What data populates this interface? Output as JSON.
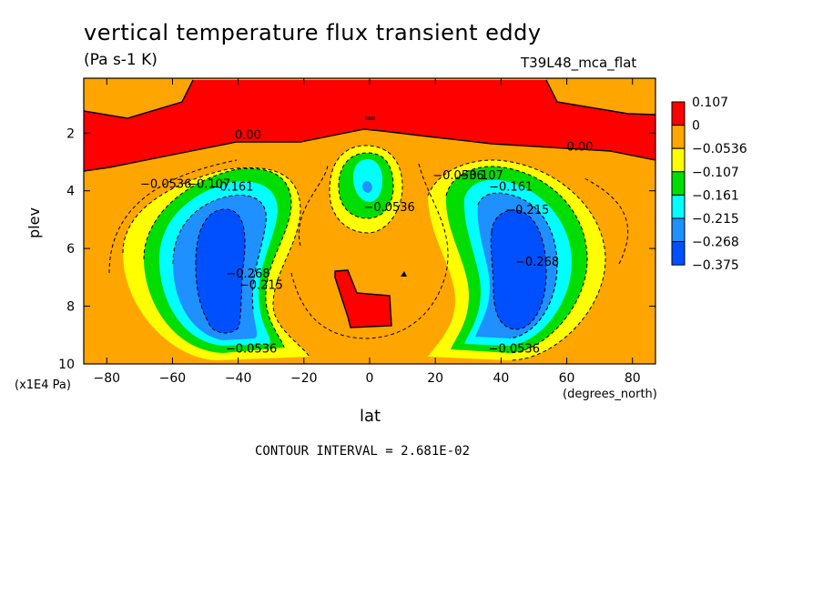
{
  "chart_data": {
    "type": "heatmap",
    "title": "vertical temperature flux transient eddy",
    "units": "(Pa s-1 K)",
    "run_label": "T39L48_mca_flat",
    "xlabel": "lat",
    "xunits": "(degrees_north)",
    "ylabel": "plev",
    "yunits": "(x1E4 Pa)",
    "contour_interval": "CONTOUR INTERVAL = 2.681E-02",
    "xlim": [
      -87,
      87
    ],
    "ylim": [
      10,
      0.1
    ],
    "x_ticks": [
      "-80",
      "-60",
      "-40",
      "-20",
      "0",
      "20",
      "40",
      "60",
      "80"
    ],
    "y_ticks": [
      "2",
      "4",
      "6",
      "8",
      "10"
    ],
    "legend": {
      "levels": [
        "0.107",
        "0",
        "−0.0536",
        "−0.107",
        "−0.161",
        "−0.215",
        "−0.268",
        "−0.375"
      ],
      "colors": [
        "#ff0000",
        "#ffa500",
        "#ffff00",
        "#00dd00",
        "#00ffff",
        "#1f90ff",
        "#0050ff"
      ]
    },
    "contour_labels": [
      {
        "text": "0.00",
        "lat": -37,
        "plev": 2.2
      },
      {
        "text": "0.00",
        "lat": 64,
        "plev": 2.6
      },
      {
        "text": "−0.0536",
        "lat": -62,
        "plev": 3.9
      },
      {
        "text": "−0.107",
        "lat": -49,
        "plev": 3.9
      },
      {
        "text": "−0.161",
        "lat": -42,
        "plev": 4.0
      },
      {
        "text": "−0.0536",
        "lat": 6,
        "plev": 4.7
      },
      {
        "text": "−0.0536",
        "lat": 27,
        "plev": 3.6
      },
      {
        "text": "−0.107",
        "lat": 34,
        "plev": 3.6
      },
      {
        "text": "−0.161",
        "lat": 43,
        "plev": 4.0
      },
      {
        "text": "−0.215",
        "lat": 48,
        "plev": 4.8
      },
      {
        "text": "−0.268",
        "lat": 51,
        "plev": 6.6
      },
      {
        "text": "−0.268",
        "lat": -37,
        "plev": 7.0
      },
      {
        "text": "−0.215",
        "lat": -33,
        "plev": 7.4
      },
      {
        "text": "−0.0536",
        "lat": -36,
        "plev": 9.6
      },
      {
        "text": "−0.0536",
        "lat": 44,
        "plev": 9.6
      }
    ]
  }
}
